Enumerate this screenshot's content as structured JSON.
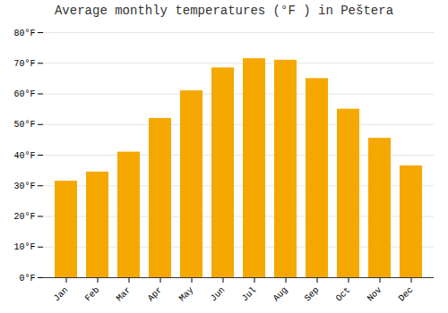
{
  "chart_data": {
    "type": "bar",
    "title": "Average monthly temperatures (°F ) in Peštera",
    "categories": [
      "Jan",
      "Feb",
      "Mar",
      "Apr",
      "May",
      "Jun",
      "Jul",
      "Aug",
      "Sep",
      "Oct",
      "Nov",
      "Dec"
    ],
    "values": [
      31.5,
      34.5,
      41.0,
      52.0,
      61.0,
      68.5,
      71.5,
      71.0,
      65.0,
      55.0,
      45.5,
      36.5
    ],
    "color": "#F5A800",
    "ylim": [
      0,
      80
    ],
    "yticks": [
      {
        "value": 0,
        "label": "0°F"
      },
      {
        "value": 10,
        "label": "10°F"
      },
      {
        "value": 20,
        "label": "20°F"
      },
      {
        "value": 30,
        "label": "30°F"
      },
      {
        "value": 40,
        "label": "40°F"
      },
      {
        "value": 50,
        "label": "50°F"
      },
      {
        "value": 60,
        "label": "60°F"
      },
      {
        "value": 70,
        "label": "70°F"
      },
      {
        "value": 80,
        "label": "80°F"
      }
    ],
    "grid": true
  }
}
